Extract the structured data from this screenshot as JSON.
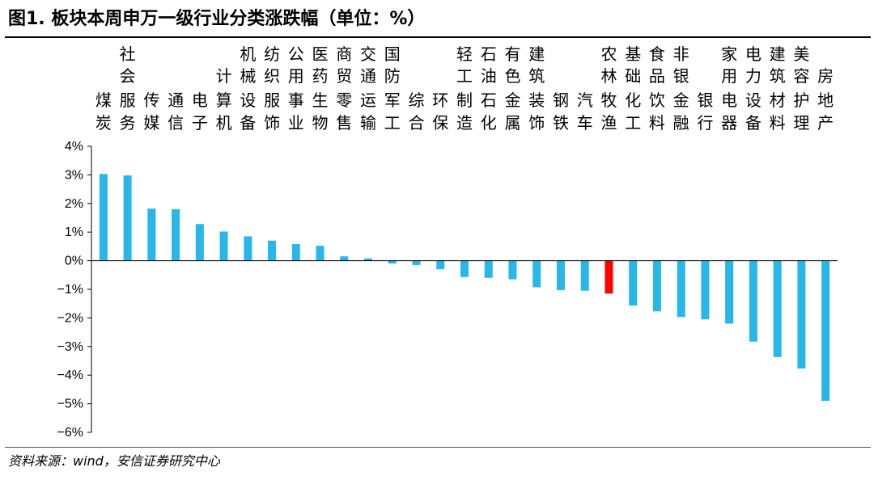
{
  "title": "图1. 板块本周申万一级行业分类涨跌幅（单位：%）",
  "source": "资料来源：wind，安信证券研究中心",
  "chart_data": {
    "type": "bar",
    "title": "图1. 板块本周申万一级行业分类涨跌幅（单位：%）",
    "xlabel": "",
    "ylabel": "",
    "ylim": [
      -6,
      4
    ],
    "yticks": [
      4,
      3,
      2,
      1,
      0,
      -1,
      -2,
      -3,
      -4,
      -5,
      -6
    ],
    "ytick_labels": [
      "4%",
      "3%",
      "2%",
      "1%",
      "0%",
      "−1%",
      "−2%",
      "−3%",
      "−4%",
      "−5%",
      "−6%"
    ],
    "grid": false,
    "colors": {
      "default": "#29b6e9",
      "highlight": "#ff0000",
      "axis": "#000000"
    },
    "highlight_categories": [
      "农林牧渔"
    ],
    "categories": [
      "煤炭",
      "社会服务",
      "传媒",
      "通信",
      "电子",
      "计算机",
      "机械设备",
      "纺织服饰",
      "公用事业",
      "医药生物",
      "商贸零售",
      "交通运输",
      "国防军工",
      "综合",
      "环保",
      "轻工制造",
      "石油石化",
      "有色金属",
      "建筑装饰",
      "钢铁",
      "汽车",
      "农林牧渔",
      "基础化工",
      "食品饮料",
      "非银金融",
      "银行",
      "家用电器",
      "电力设备",
      "建筑材料",
      "美容护理",
      "房地产"
    ],
    "values": [
      3.03,
      2.98,
      1.82,
      1.8,
      1.28,
      1.02,
      0.85,
      0.7,
      0.58,
      0.52,
      0.15,
      0.08,
      -0.1,
      -0.15,
      -0.3,
      -0.57,
      -0.6,
      -0.65,
      -0.93,
      -1.03,
      -1.05,
      -1.15,
      -1.57,
      -1.77,
      -1.97,
      -2.05,
      -2.2,
      -2.83,
      -3.37,
      -3.77,
      -4.9
    ]
  }
}
